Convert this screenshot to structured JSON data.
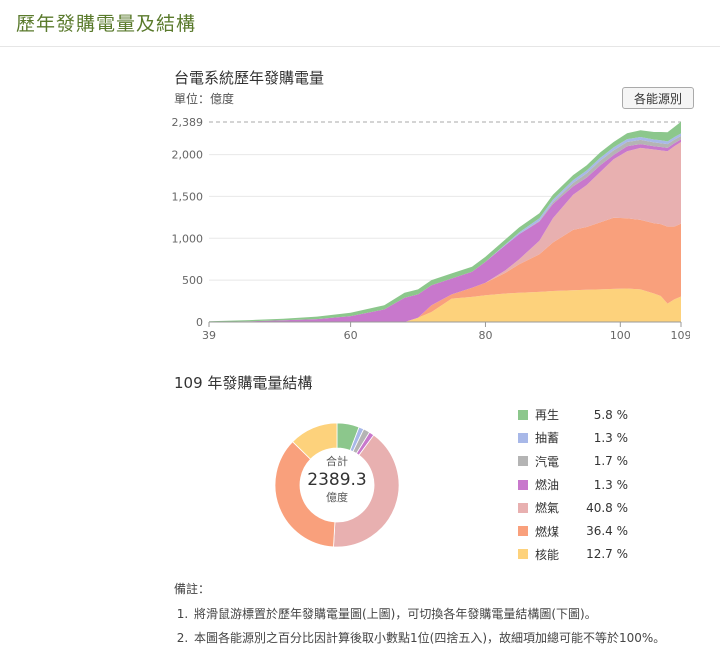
{
  "page": {
    "title": "歷年發購電量及結構"
  },
  "area_section": {
    "title": "台電系統歷年發購電量",
    "unit": "單位：億度",
    "source_button": "各能源別",
    "max_label": "2,389"
  },
  "donut_section": {
    "title": "109 年發購電量結構",
    "center_label": "合計",
    "center_value": "2389.3",
    "center_unit": "億度"
  },
  "legend": [
    {
      "name": "再生",
      "pct": "5.8 %",
      "color": "#8cc78c"
    },
    {
      "name": "抽蓄",
      "pct": "1.3 %",
      "color": "#a8b8e8"
    },
    {
      "name": "汽電",
      "pct": "1.7 %",
      "color": "#b4b4b4"
    },
    {
      "name": "燃油",
      "pct": "1.3 %",
      "color": "#c878cc"
    },
    {
      "name": "燃氣",
      "pct": "40.8 %",
      "color": "#e8b0b0"
    },
    {
      "name": "燃煤",
      "pct": "36.4 %",
      "color": "#f9a07c"
    },
    {
      "name": "核能",
      "pct": "12.7 %",
      "color": "#fdd27c"
    }
  ],
  "notes": {
    "title": "備註：",
    "items": [
      "將滑鼠游標置於歷年發購電量圖(上圖)，可切換各年發購電量結構圖(下圖)。",
      "本圖各能源別之百分比因計算後取小數點1位(四捨五入)，故細項加總可能不等於100%。"
    ]
  },
  "chart_data": [
    {
      "type": "area",
      "title": "台電系統歷年發購電量",
      "ylabel": "單位：億度",
      "stacked": true,
      "x_ticks": [
        39,
        60,
        80,
        100,
        109
      ],
      "y_ticks": [
        0,
        500,
        1000,
        1500,
        2000,
        2389
      ],
      "ylim": [
        0,
        2389
      ],
      "xlim": [
        39,
        109
      ],
      "grid": true,
      "x": [
        39,
        45,
        50,
        55,
        60,
        65,
        68,
        70,
        72,
        75,
        78,
        80,
        83,
        85,
        88,
        90,
        93,
        95,
        97,
        99,
        101,
        103,
        105,
        106,
        107,
        108,
        109
      ],
      "series": [
        {
          "name": "核能",
          "color": "#fdd27c",
          "values": [
            0,
            0,
            0,
            0,
            0,
            0,
            0,
            50,
            120,
            280,
            300,
            320,
            340,
            350,
            360,
            370,
            380,
            385,
            390,
            395,
            400,
            390,
            340,
            310,
            220,
            270,
            305
          ]
        },
        {
          "name": "燃煤",
          "color": "#f9a07c",
          "values": [
            0,
            0,
            0,
            0,
            0,
            0,
            0,
            0,
            80,
            50,
            110,
            150,
            250,
            340,
            450,
            580,
            720,
            750,
            800,
            850,
            840,
            830,
            840,
            860,
            920,
            870,
            870
          ]
        },
        {
          "name": "燃氣",
          "color": "#e8b0b0",
          "values": [
            0,
            0,
            0,
            0,
            0,
            0,
            0,
            0,
            0,
            0,
            0,
            0,
            30,
            60,
            160,
            290,
            420,
            500,
            600,
            700,
            800,
            860,
            880,
            880,
            900,
            960,
            975
          ]
        },
        {
          "name": "燃油",
          "color": "#c878cc",
          "values": [
            0,
            8,
            20,
            35,
            70,
            150,
            290,
            280,
            240,
            190,
            190,
            250,
            300,
            300,
            230,
            170,
            100,
            90,
            80,
            50,
            60,
            45,
            40,
            40,
            40,
            35,
            31
          ]
        },
        {
          "name": "汽電",
          "color": "#b4b4b4",
          "values": [
            0,
            0,
            0,
            0,
            0,
            0,
            0,
            0,
            0,
            0,
            0,
            0,
            0,
            0,
            10,
            20,
            40,
            50,
            55,
            55,
            50,
            50,
            45,
            45,
            45,
            42,
            41
          ]
        },
        {
          "name": "抽蓄",
          "color": "#a8b8e8",
          "values": [
            0,
            0,
            0,
            0,
            0,
            0,
            0,
            0,
            0,
            0,
            0,
            0,
            10,
            20,
            30,
            30,
            35,
            35,
            35,
            35,
            35,
            35,
            35,
            35,
            32,
            32,
            31
          ]
        },
        {
          "name": "再生",
          "color": "#8cc78c",
          "values": [
            10,
            15,
            20,
            30,
            40,
            50,
            60,
            60,
            60,
            60,
            60,
            60,
            60,
            60,
            60,
            60,
            60,
            60,
            65,
            65,
            70,
            80,
            90,
            100,
            110,
            120,
            139
          ]
        }
      ]
    },
    {
      "type": "pie",
      "donut": true,
      "title": "109 年發購電量結構",
      "total": 2389.3,
      "unit": "億度",
      "labels": [
        "再生",
        "抽蓄",
        "汽電",
        "燃油",
        "燃氣",
        "燃煤",
        "核能"
      ],
      "values": [
        5.8,
        1.3,
        1.7,
        1.3,
        40.8,
        36.4,
        12.7
      ],
      "colors": [
        "#8cc78c",
        "#a8b8e8",
        "#b4b4b4",
        "#c878cc",
        "#e8b0b0",
        "#f9a07c",
        "#fdd27c"
      ]
    }
  ]
}
